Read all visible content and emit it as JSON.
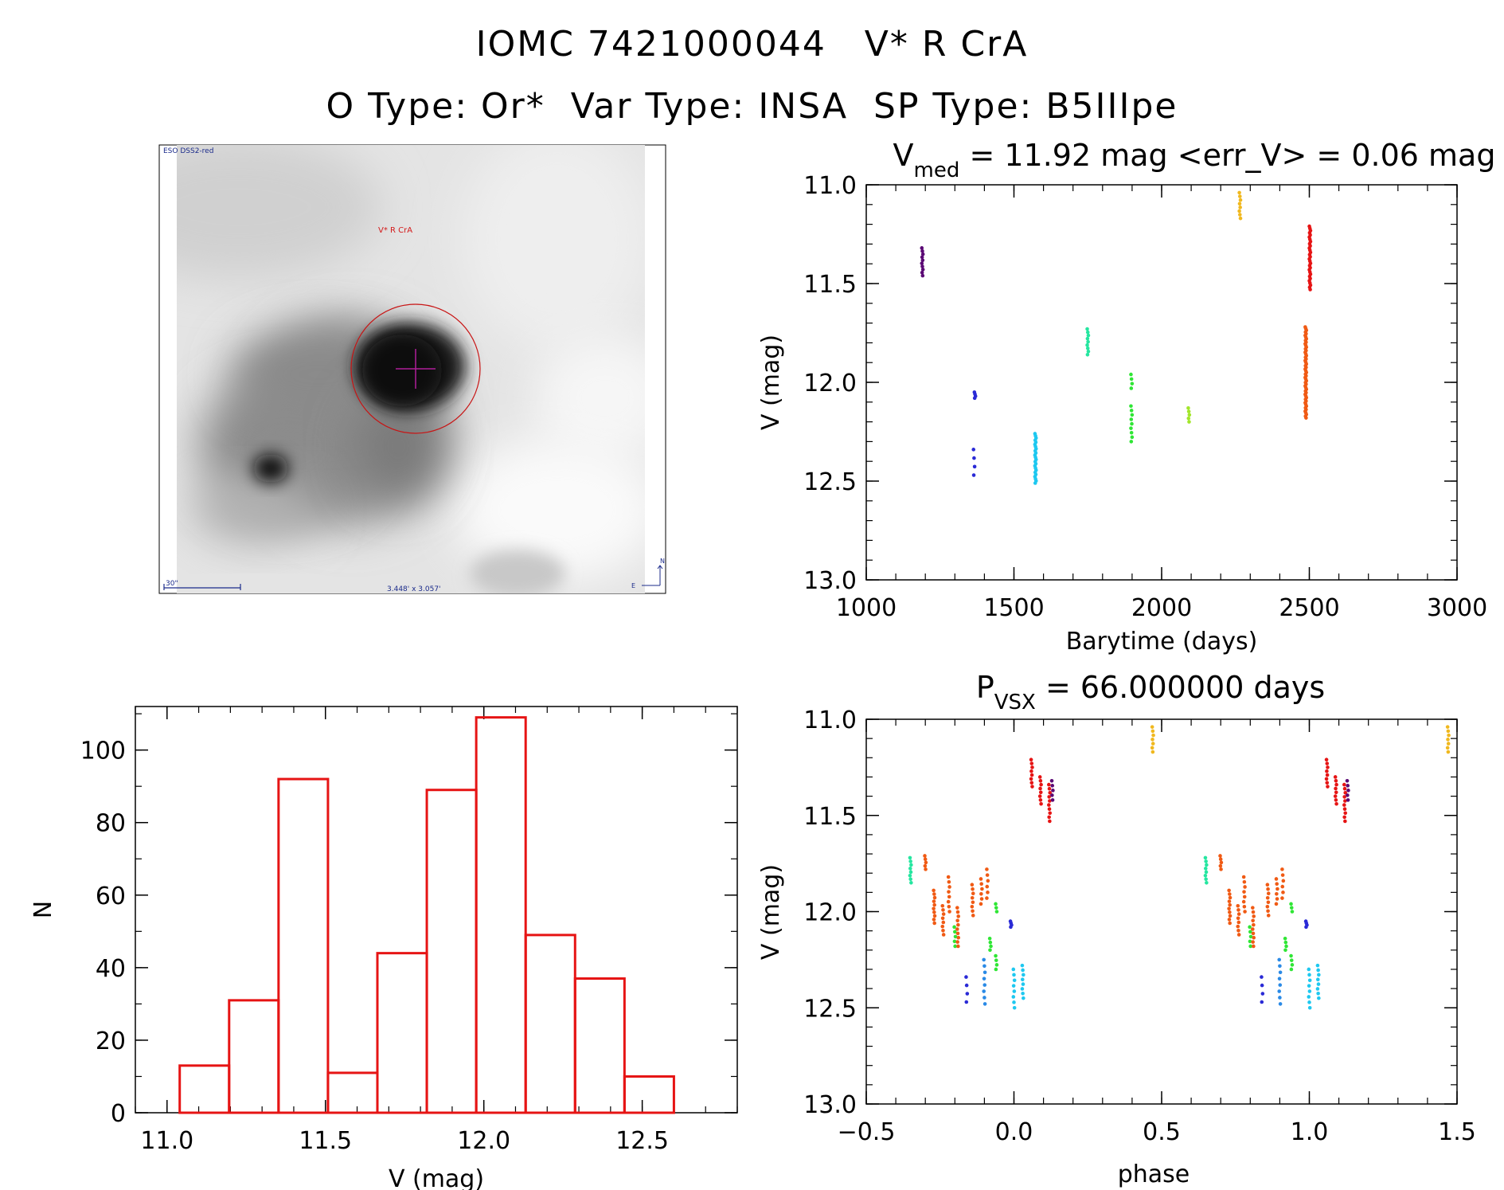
{
  "header": {
    "line1": "IOMC 7421000044   V* R CrA",
    "line2": "O Type: Or*  Var Type: INSA  SP Type: B5IIIpe"
  },
  "image_panel": {
    "survey_label": "ESO DSS2-red",
    "target_label": "V* R CrA",
    "scale_label": "30\"",
    "fov_label": "3.448' x 3.057'",
    "north_label": "N",
    "east_label": "E"
  },
  "chart_data": [
    {
      "type": "scatter",
      "id": "light-curve",
      "title_main": "V",
      "title_sub": "med",
      "title_rest": " = 11.92 mag <err_V> = 0.06 mag",
      "xlabel": "Barytime (days)",
      "ylabel": "V (mag)",
      "xlim": [
        1000,
        3000
      ],
      "ylim": [
        13.0,
        11.0
      ],
      "xticks": [
        "1000",
        "1500",
        "2000",
        "2500",
        "3000"
      ],
      "yticks": [
        "11.0",
        "11.5",
        "12.0",
        "12.5",
        "13.0"
      ],
      "groups": [
        {
          "x": 1190,
          "ymin": 11.32,
          "ymax": 11.46,
          "n": 10,
          "color": "#5b0a75"
        },
        {
          "x": 1368,
          "ymin": 12.05,
          "ymax": 12.08,
          "n": 4,
          "color": "#2a2ad6"
        },
        {
          "x": 1365,
          "ymin": 12.34,
          "ymax": 12.47,
          "n": 4,
          "color": "#2a2ad6"
        },
        {
          "x": 1573,
          "ymin": 12.26,
          "ymax": 12.51,
          "n": 24,
          "color": "#1ec8f0"
        },
        {
          "x": 1750,
          "ymin": 11.73,
          "ymax": 11.86,
          "n": 9,
          "color": "#25e6a0"
        },
        {
          "x": 1898,
          "ymin": 11.96,
          "ymax": 12.03,
          "n": 4,
          "color": "#2fe635"
        },
        {
          "x": 1898,
          "ymin": 12.12,
          "ymax": 12.3,
          "n": 9,
          "color": "#2fe635"
        },
        {
          "x": 2092,
          "ymin": 12.13,
          "ymax": 12.2,
          "n": 5,
          "color": "#a2e62a"
        },
        {
          "x": 2265,
          "ymin": 11.04,
          "ymax": 11.17,
          "n": 8,
          "color": "#f0b81e"
        },
        {
          "x": 2488,
          "ymin": 11.72,
          "ymax": 12.18,
          "n": 55,
          "color": "#f05a14"
        },
        {
          "x": 2502,
          "ymin": 11.21,
          "ymax": 11.53,
          "n": 30,
          "color": "#e61414"
        }
      ]
    },
    {
      "type": "bar",
      "id": "histogram",
      "xlabel": "V (mag)",
      "ylabel": "N",
      "xlim": [
        10.9,
        12.8
      ],
      "ylim": [
        0,
        112
      ],
      "xticks": [
        "11.0",
        "11.5",
        "12.0",
        "12.5"
      ],
      "yticks": [
        "0",
        "20",
        "40",
        "60",
        "80",
        "100"
      ],
      "bin_edges": [
        11.04,
        11.196,
        11.352,
        11.508,
        11.664,
        11.82,
        11.976,
        12.132,
        12.288,
        12.444,
        12.6
      ],
      "values": [
        13,
        31,
        92,
        11,
        44,
        89,
        109,
        49,
        37,
        10
      ],
      "color": "#e61414"
    },
    {
      "type": "scatter",
      "id": "phase-curve",
      "title_main": "P",
      "title_sub": "VSX",
      "title_rest": " = 66.000000 days",
      "xlabel": "phase",
      "ylabel": "V (mag)",
      "xlim": [
        -0.5,
        1.5
      ],
      "ylim": [
        13.0,
        11.0
      ],
      "xticks": [
        "−0.5",
        "0.0",
        "0.5",
        "1.0",
        "1.5"
      ],
      "yticks": [
        "11.0",
        "11.5",
        "12.0",
        "12.5",
        "13.0"
      ],
      "groups": [
        {
          "x": -0.35,
          "ymin": 11.72,
          "ymax": 11.85,
          "n": 8,
          "color": "#25e6a0"
        },
        {
          "x": -0.3,
          "ymin": 11.71,
          "ymax": 11.78,
          "n": 5,
          "color": "#f05a14"
        },
        {
          "x": -0.27,
          "ymin": 11.89,
          "ymax": 12.06,
          "n": 10,
          "color": "#f05a14"
        },
        {
          "x": -0.24,
          "ymin": 11.97,
          "ymax": 12.12,
          "n": 8,
          "color": "#f05a14"
        },
        {
          "x": -0.22,
          "ymin": 11.82,
          "ymax": 12.0,
          "n": 8,
          "color": "#f05a14"
        },
        {
          "x": -0.2,
          "ymin": 12.08,
          "ymax": 12.18,
          "n": 5,
          "color": "#2fe635"
        },
        {
          "x": -0.19,
          "ymin": 11.98,
          "ymax": 12.18,
          "n": 10,
          "color": "#f05a14"
        },
        {
          "x": -0.16,
          "ymin": 12.34,
          "ymax": 12.47,
          "n": 4,
          "color": "#2a2ad6"
        },
        {
          "x": -0.14,
          "ymin": 11.86,
          "ymax": 12.02,
          "n": 8,
          "color": "#f05a14"
        },
        {
          "x": -0.11,
          "ymin": 11.83,
          "ymax": 11.96,
          "n": 6,
          "color": "#f05a14"
        },
        {
          "x": -0.09,
          "ymin": 11.78,
          "ymax": 11.93,
          "n": 6,
          "color": "#f05a14"
        },
        {
          "x": -0.1,
          "ymin": 12.25,
          "ymax": 12.48,
          "n": 8,
          "color": "#2a8ae6"
        },
        {
          "x": -0.08,
          "ymin": 12.14,
          "ymax": 12.2,
          "n": 4,
          "color": "#2fe635"
        },
        {
          "x": -0.06,
          "ymin": 11.96,
          "ymax": 12.0,
          "n": 3,
          "color": "#2fe635"
        },
        {
          "x": -0.06,
          "ymin": 12.23,
          "ymax": 12.3,
          "n": 4,
          "color": "#2fe635"
        },
        {
          "x": -0.01,
          "ymin": 12.05,
          "ymax": 12.08,
          "n": 4,
          "color": "#2a2ad6"
        },
        {
          "x": 0.0,
          "ymin": 12.3,
          "ymax": 12.5,
          "n": 8,
          "color": "#1ec8f0"
        },
        {
          "x": 0.03,
          "ymin": 12.28,
          "ymax": 12.45,
          "n": 8,
          "color": "#1ec8f0"
        },
        {
          "x": 0.06,
          "ymin": 11.21,
          "ymax": 11.35,
          "n": 8,
          "color": "#e61414"
        },
        {
          "x": 0.09,
          "ymin": 11.3,
          "ymax": 11.44,
          "n": 8,
          "color": "#e61414"
        },
        {
          "x": 0.12,
          "ymin": 11.34,
          "ymax": 11.53,
          "n": 10,
          "color": "#e61414"
        },
        {
          "x": 0.13,
          "ymin": 11.32,
          "ymax": 11.42,
          "n": 5,
          "color": "#5b0a75"
        },
        {
          "x": 0.47,
          "ymin": 11.04,
          "ymax": 11.17,
          "n": 7,
          "color": "#f0b81e"
        },
        {
          "x": 0.65,
          "ymin": 11.72,
          "ymax": 11.85,
          "n": 8,
          "color": "#25e6a0"
        },
        {
          "x": 0.7,
          "ymin": 11.71,
          "ymax": 11.78,
          "n": 5,
          "color": "#f05a14"
        },
        {
          "x": 0.73,
          "ymin": 11.89,
          "ymax": 12.06,
          "n": 10,
          "color": "#f05a14"
        },
        {
          "x": 0.76,
          "ymin": 11.97,
          "ymax": 12.12,
          "n": 8,
          "color": "#f05a14"
        },
        {
          "x": 0.78,
          "ymin": 11.82,
          "ymax": 12.0,
          "n": 8,
          "color": "#f05a14"
        },
        {
          "x": 0.8,
          "ymin": 12.08,
          "ymax": 12.18,
          "n": 5,
          "color": "#2fe635"
        },
        {
          "x": 0.81,
          "ymin": 11.98,
          "ymax": 12.18,
          "n": 10,
          "color": "#f05a14"
        },
        {
          "x": 0.84,
          "ymin": 12.34,
          "ymax": 12.47,
          "n": 4,
          "color": "#2a2ad6"
        },
        {
          "x": 0.86,
          "ymin": 11.86,
          "ymax": 12.02,
          "n": 8,
          "color": "#f05a14"
        },
        {
          "x": 0.89,
          "ymin": 11.83,
          "ymax": 11.96,
          "n": 6,
          "color": "#f05a14"
        },
        {
          "x": 0.91,
          "ymin": 11.78,
          "ymax": 11.93,
          "n": 6,
          "color": "#f05a14"
        },
        {
          "x": 0.9,
          "ymin": 12.25,
          "ymax": 12.48,
          "n": 8,
          "color": "#2a8ae6"
        },
        {
          "x": 0.92,
          "ymin": 12.14,
          "ymax": 12.2,
          "n": 4,
          "color": "#2fe635"
        },
        {
          "x": 0.94,
          "ymin": 11.96,
          "ymax": 12.0,
          "n": 3,
          "color": "#2fe635"
        },
        {
          "x": 0.94,
          "ymin": 12.23,
          "ymax": 12.3,
          "n": 4,
          "color": "#2fe635"
        },
        {
          "x": 0.99,
          "ymin": 12.05,
          "ymax": 12.08,
          "n": 4,
          "color": "#2a2ad6"
        },
        {
          "x": 1.0,
          "ymin": 12.3,
          "ymax": 12.5,
          "n": 8,
          "color": "#1ec8f0"
        },
        {
          "x": 1.03,
          "ymin": 12.28,
          "ymax": 12.45,
          "n": 8,
          "color": "#1ec8f0"
        },
        {
          "x": 1.06,
          "ymin": 11.21,
          "ymax": 11.35,
          "n": 8,
          "color": "#e61414"
        },
        {
          "x": 1.09,
          "ymin": 11.3,
          "ymax": 11.44,
          "n": 8,
          "color": "#e61414"
        },
        {
          "x": 1.12,
          "ymin": 11.34,
          "ymax": 11.53,
          "n": 10,
          "color": "#e61414"
        },
        {
          "x": 1.13,
          "ymin": 11.32,
          "ymax": 11.42,
          "n": 5,
          "color": "#5b0a75"
        },
        {
          "x": 1.47,
          "ymin": 11.04,
          "ymax": 11.17,
          "n": 7,
          "color": "#f0b81e"
        }
      ]
    }
  ]
}
